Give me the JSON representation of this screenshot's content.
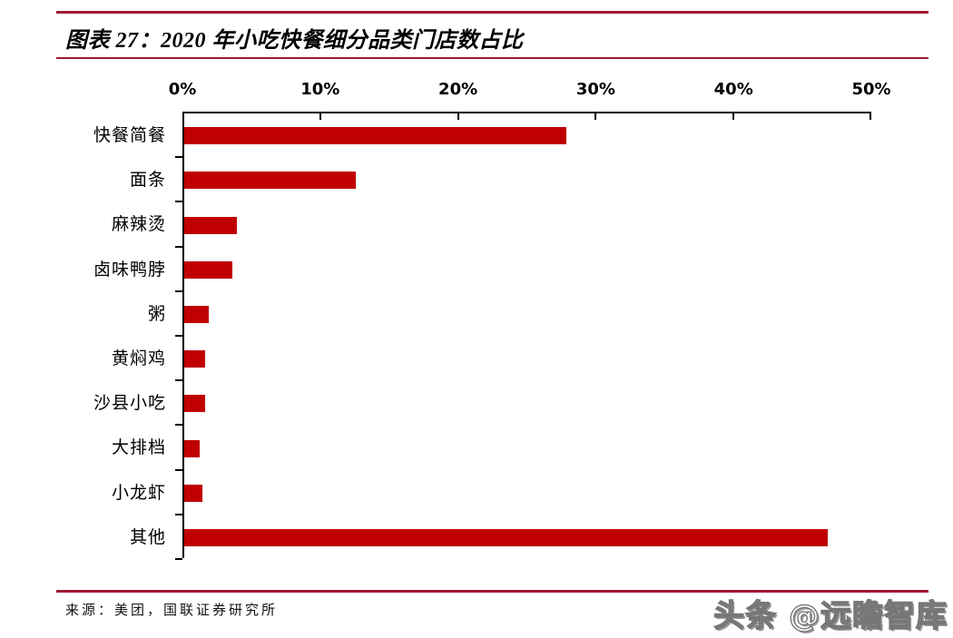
{
  "header": {
    "title": "图表 27：2020 年小吃快餐细分品类门店数占比"
  },
  "chart_data": {
    "type": "bar",
    "orientation": "horizontal",
    "title": "2020 年小吃快餐细分品类门店数占比",
    "categories": [
      "快餐简餐",
      "面条",
      "麻辣烫",
      "卤味鸭脖",
      "粥",
      "黄焖鸡",
      "沙县小吃",
      "大排档",
      "小龙虾",
      "其他"
    ],
    "values": [
      27.8,
      12.5,
      3.8,
      3.5,
      1.8,
      1.5,
      1.5,
      1.1,
      1.3,
      46.8
    ],
    "unit": "%",
    "xlabel": "",
    "ylabel": "",
    "xlim": [
      0,
      50
    ],
    "x_tick_labels": [
      "0%",
      "10%",
      "20%",
      "30%",
      "40%",
      "50%"
    ],
    "x_axis_position": "top",
    "grid": false,
    "legend": false,
    "bar_color": "#C00000",
    "axis_color": "#000000"
  },
  "footer": {
    "source": "来源：美团，国联证券研究所"
  },
  "watermark": {
    "text": "头条 @远瞻智库"
  },
  "colors": {
    "accent_rule": "#9E1B32",
    "bar": "#C00000",
    "background": "#FFFFFF"
  }
}
